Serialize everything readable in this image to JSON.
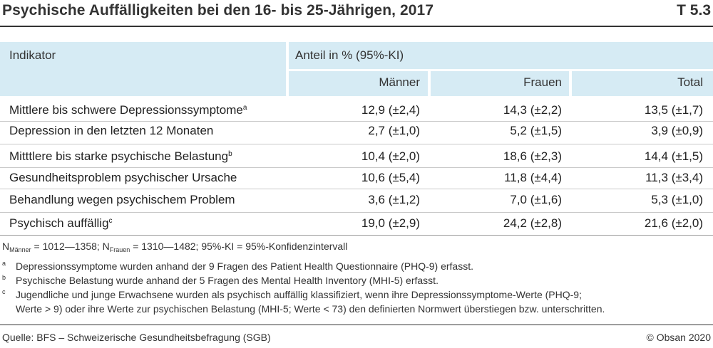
{
  "header": {
    "title": "Psychische Auffälligkeiten bei den 16- bis 25-Jährigen, 2017",
    "table_id": "T 5.3"
  },
  "table": {
    "indicator_label": "Indikator",
    "group_label": "Anteil in % (95%-KI)",
    "columns": [
      "Männer",
      "Frauen",
      "Total"
    ],
    "rows": [
      {
        "label": "Mittlere bis schwere Depressionssymptome",
        "note": "a",
        "values": [
          "12,9 (±2,4)",
          "14,3 (±2,2)",
          "13,5 (±1,7)"
        ]
      },
      {
        "label": "Depression in den letzten 12 Monaten",
        "note": "",
        "values": [
          "2,7 (±1,0)",
          "5,2 (±1,5)",
          "3,9 (±0,9)"
        ]
      },
      {
        "label": "Mitttlere bis starke psychische Belastung",
        "note": "b",
        "values": [
          "10,4 (±2,0)",
          "18,6 (±2,3)",
          "14,4 (±1,5)"
        ]
      },
      {
        "label": "Gesundheitsproblem psychischer Ursache",
        "note": "",
        "values": [
          "10,6 (±5,4)",
          "11,8 (±4,4)",
          "11,3 (±3,4)"
        ]
      },
      {
        "label": "Behandlung wegen psychischem Problem",
        "note": "",
        "values": [
          "3,6 (±1,2)",
          "7,0 (±1,6)",
          "5,3 (±1,0)"
        ]
      },
      {
        "label": "Psychisch auffällig",
        "note": "c",
        "values": [
          "19,0 (±2,9)",
          "24,2 (±2,8)",
          "21,6 (±2,0)"
        ]
      }
    ]
  },
  "notes": {
    "n_prefix": "N",
    "n_men_sub": "Männer",
    "n_men_text": " = 1012—1358; N",
    "n_women_sub": "Frauen",
    "n_women_text": " = 1310—1482; 95%-KI = 95%-Konfidenzintervall",
    "footnotes": [
      {
        "mark": "a",
        "lines": [
          "Depressionssymptome wurden anhand der 9 Fragen des Patient Health Questionnaire (PHQ-9) erfasst."
        ]
      },
      {
        "mark": "b",
        "lines": [
          "Psychische Belastung wurde anhand der 5 Fragen des Mental Health Inventory (MHI-5) erfasst."
        ]
      },
      {
        "mark": "c",
        "lines": [
          "Jugendliche und junge Erwachsene wurden als psychisch auffällig klassifiziert, wenn ihre Depressionssymptome-Werte (PHQ-9;",
          "Werte > 9) oder ihre Werte zur psychischen Belastung (MHI-5; Werte < 73) den definierten Normwert überstiegen bzw. unterschritten."
        ]
      }
    ]
  },
  "footer": {
    "source": "Quelle: BFS – Schweizerische Gesundheitsbefragung (SGB)",
    "copyright": "© Obsan 2020"
  }
}
